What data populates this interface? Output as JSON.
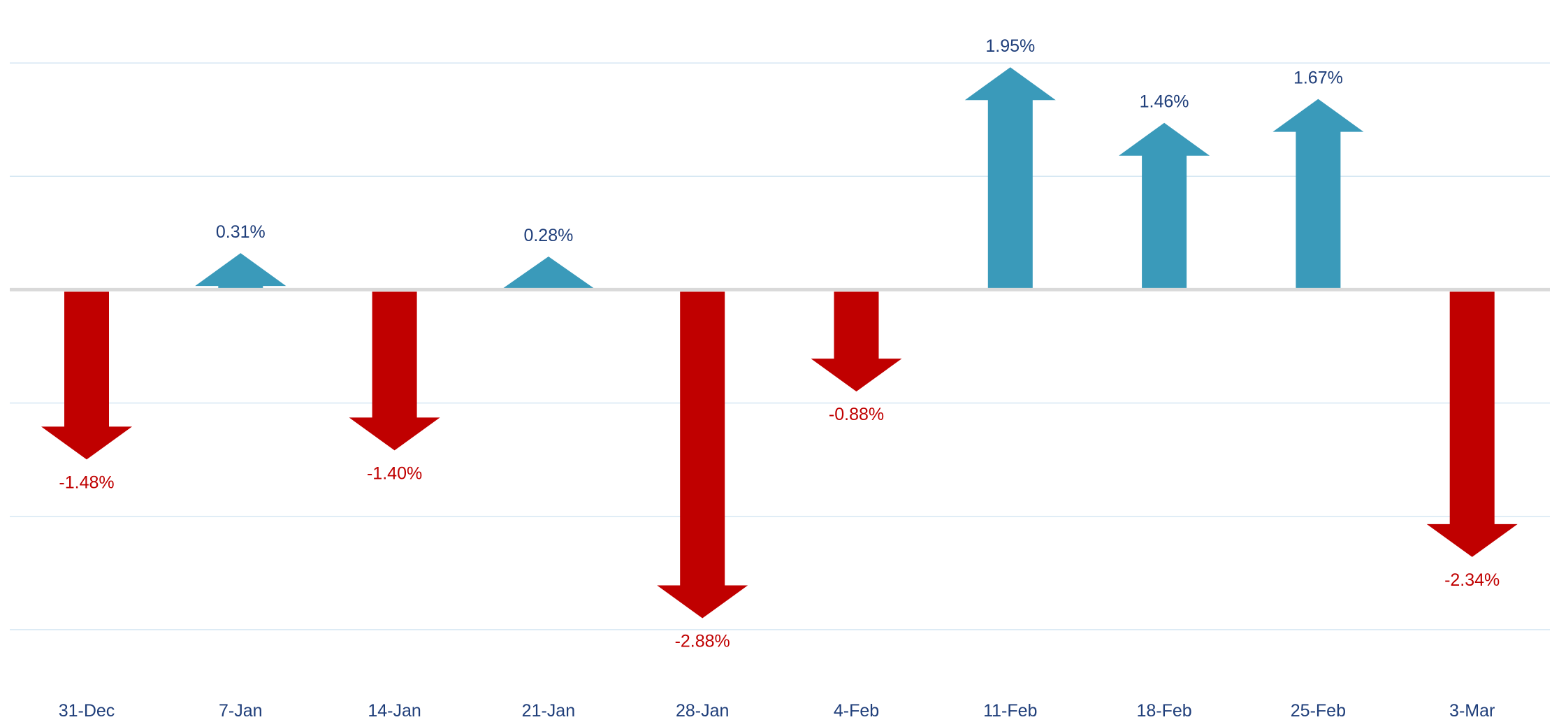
{
  "chart_data": {
    "type": "bar",
    "categories": [
      "31-Dec",
      "7-Jan",
      "14-Jan",
      "21-Jan",
      "28-Jan",
      "4-Feb",
      "11-Feb",
      "18-Feb",
      "25-Feb",
      "3-Mar"
    ],
    "values": [
      -1.48,
      0.31,
      -1.4,
      0.28,
      -2.88,
      -0.88,
      1.95,
      1.46,
      1.67,
      -2.34
    ],
    "data_labels": [
      "-1.48%",
      "0.31%",
      "-1.40%",
      "0.28%",
      "-2.88%",
      "-0.88%",
      "1.95%",
      "1.46%",
      "1.67%",
      "-2.34%"
    ],
    "title": "",
    "xlabel": "",
    "ylabel": "",
    "ylim": [
      -3.5,
      2.5
    ],
    "grid": true,
    "legend": "none",
    "mark_shape": "arrow",
    "colors": {
      "positive": "#3a9aba",
      "negative": "#c00000",
      "positive_label": "#1f3e7a",
      "negative_label": "#c00000",
      "tick_label": "#1f3e7a",
      "gridline": "#d6e7f3",
      "zero_line": "#d9d9d9"
    }
  }
}
